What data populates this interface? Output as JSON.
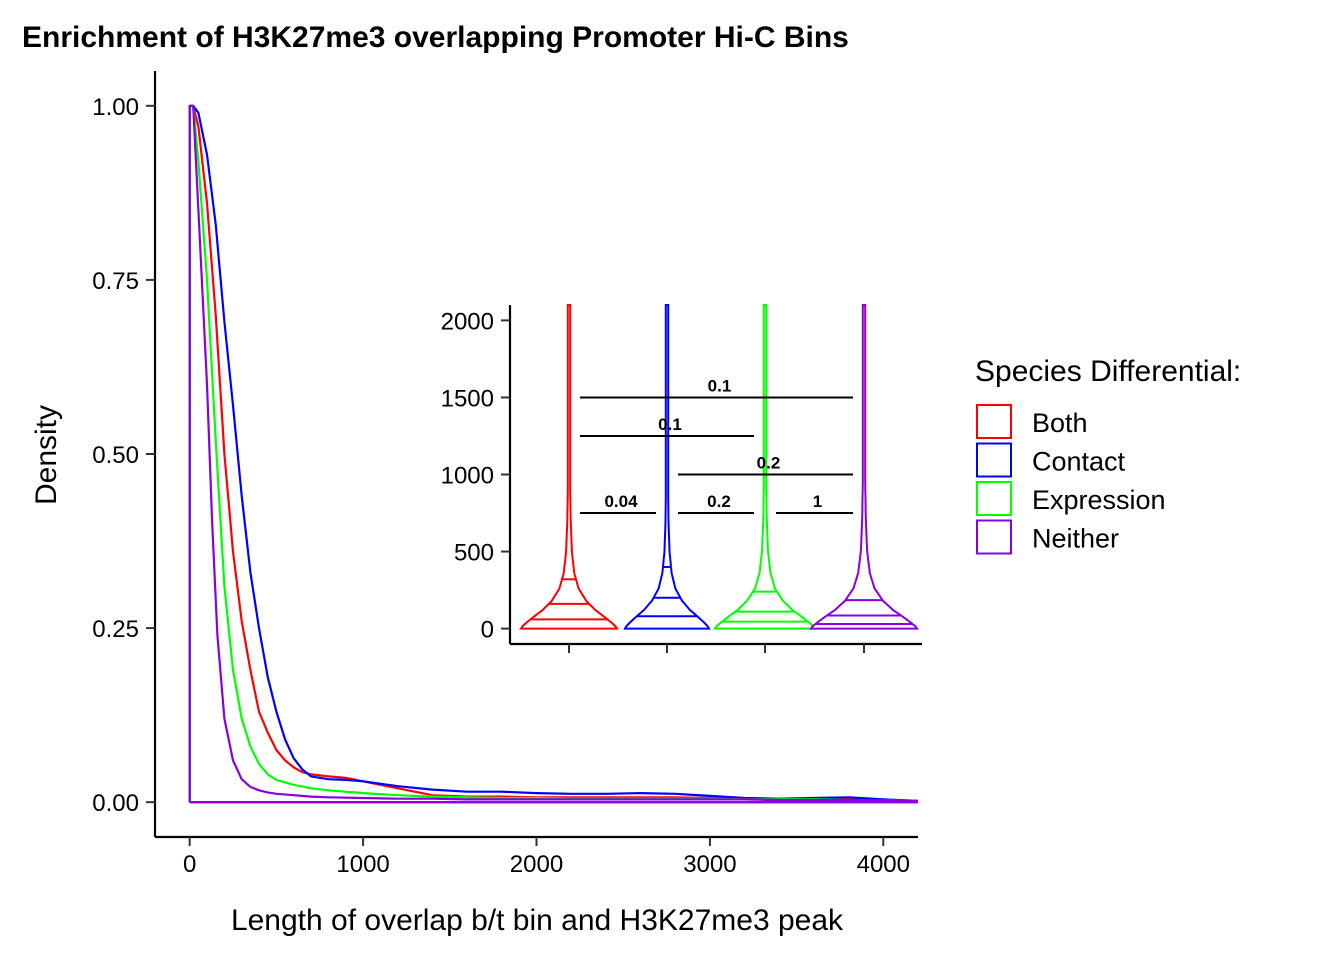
{
  "chart_data": [
    {
      "type": "line",
      "subtype": "density",
      "title": "Enrichment of H3K27me3 overlapping Promoter Hi-C Bins",
      "xlabel": "Length of overlap b/t bin and H3K27me3 peak",
      "ylabel": "Density",
      "xlim": [
        -200,
        4200
      ],
      "ylim": [
        -0.05,
        1.05
      ],
      "x_ticks": [
        0,
        1000,
        2000,
        3000,
        4000
      ],
      "x_tick_labels": [
        "0",
        "1000",
        "2000",
        "3000",
        "4000"
      ],
      "y_ticks": [
        0,
        0.25,
        0.5,
        0.75,
        1.0
      ],
      "y_tick_labels": [
        "0.00",
        "0.25",
        "0.50",
        "0.75",
        "1.00"
      ],
      "grid": false,
      "legend_position": "right",
      "legend_title": "Species Differential:",
      "series": [
        {
          "name": "Both",
          "color": "#FF0000",
          "x": [
            0,
            0,
            20,
            50,
            100,
            150,
            200,
            250,
            300,
            350,
            400,
            450,
            500,
            550,
            600,
            650,
            700,
            800,
            900,
            1000,
            1200,
            1400,
            1600,
            1800,
            2000,
            2200,
            2400,
            2600,
            2800,
            3000,
            3200,
            3400,
            3600,
            3800,
            4000,
            4200
          ],
          "y": [
            0.0,
            1.0,
            1.0,
            0.97,
            0.86,
            0.7,
            0.5,
            0.36,
            0.26,
            0.19,
            0.13,
            0.1,
            0.075,
            0.06,
            0.05,
            0.043,
            0.04,
            0.037,
            0.035,
            0.03,
            0.02,
            0.01,
            0.008,
            0.008,
            0.007,
            0.007,
            0.007,
            0.007,
            0.007,
            0.006,
            0.005,
            0.004,
            0.004,
            0.004,
            0.003,
            0.002
          ]
        },
        {
          "name": "Contact",
          "color": "#0000FF",
          "x": [
            0,
            0,
            20,
            50,
            100,
            150,
            200,
            250,
            300,
            350,
            400,
            450,
            500,
            550,
            600,
            650,
            700,
            800,
            900,
            1000,
            1200,
            1400,
            1600,
            1800,
            2000,
            2200,
            2400,
            2600,
            2800,
            3000,
            3200,
            3400,
            3600,
            3800,
            4000,
            4200
          ],
          "y": [
            0.0,
            1.0,
            1.0,
            0.99,
            0.93,
            0.83,
            0.69,
            0.57,
            0.44,
            0.33,
            0.25,
            0.18,
            0.13,
            0.09,
            0.063,
            0.047,
            0.037,
            0.033,
            0.032,
            0.03,
            0.023,
            0.018,
            0.015,
            0.015,
            0.013,
            0.012,
            0.012,
            0.013,
            0.012,
            0.009,
            0.006,
            0.005,
            0.006,
            0.007,
            0.004,
            0.002
          ]
        },
        {
          "name": "Expression",
          "color": "#00FF00",
          "x": [
            0,
            0,
            20,
            50,
            100,
            150,
            200,
            250,
            300,
            350,
            400,
            450,
            500,
            600,
            700,
            800,
            1000,
            1200,
            1400,
            1600,
            1800,
            2000,
            2200,
            2400,
            2600,
            2800,
            3000,
            3200,
            3400,
            3600,
            3800,
            4000,
            4200
          ],
          "y": [
            0.0,
            1.0,
            1.0,
            0.92,
            0.75,
            0.52,
            0.31,
            0.19,
            0.12,
            0.08,
            0.055,
            0.04,
            0.032,
            0.025,
            0.02,
            0.017,
            0.013,
            0.01,
            0.008,
            0.007,
            0.006,
            0.006,
            0.005,
            0.005,
            0.005,
            0.005,
            0.005,
            0.004,
            0.004,
            0.004,
            0.003,
            0.003,
            0.002
          ]
        },
        {
          "name": "Neither",
          "color": "#8800DD",
          "x": [
            0,
            0,
            20,
            50,
            100,
            130,
            160,
            200,
            250,
            300,
            350,
            400,
            450,
            500,
            600,
            700,
            800,
            1000,
            1200,
            1400,
            1600,
            1800,
            2000,
            2200,
            2400,
            2600,
            2800,
            3000,
            3200,
            3400,
            3600,
            3800,
            4000,
            4200
          ],
          "y": [
            0.0,
            1.0,
            1.0,
            0.85,
            0.6,
            0.4,
            0.24,
            0.12,
            0.06,
            0.033,
            0.022,
            0.017,
            0.014,
            0.012,
            0.01,
            0.008,
            0.007,
            0.006,
            0.005,
            0.005,
            0.004,
            0.004,
            0.004,
            0.004,
            0.004,
            0.004,
            0.004,
            0.004,
            0.004,
            0.003,
            0.003,
            0.003,
            0.003,
            0.002
          ]
        }
      ]
    },
    {
      "type": "violin",
      "title": "",
      "xlabel": "",
      "ylabel": "",
      "categories": [
        "Both",
        "Contact",
        "Expression",
        "Neither"
      ],
      "ylim": [
        -100,
        2100
      ],
      "y_ticks": [
        0,
        500,
        1000,
        1500,
        2000
      ],
      "y_tick_labels": [
        "0",
        "500",
        "1000",
        "1500",
        "2000"
      ],
      "quantiles_drawn": [
        0.25,
        0.5,
        0.75
      ],
      "series": [
        {
          "name": "Both",
          "color": "#FF0000",
          "quantiles": [
            60,
            160,
            320
          ],
          "max": 2100
        },
        {
          "name": "Contact",
          "color": "#0000FF",
          "quantiles": [
            80,
            200,
            400
          ],
          "max": 2100
        },
        {
          "name": "Expression",
          "color": "#00FF00",
          "quantiles": [
            45,
            110,
            240
          ],
          "max": 2100
        },
        {
          "name": "Neither",
          "color": "#8800DD",
          "quantiles": [
            30,
            85,
            185
          ],
          "max": 2100
        }
      ],
      "comparisons": [
        {
          "groups": [
            "Both",
            "Contact"
          ],
          "label": "0.04",
          "y": 750
        },
        {
          "groups": [
            "Contact",
            "Expression"
          ],
          "label": "0.2",
          "y": 750
        },
        {
          "groups": [
            "Expression",
            "Neither"
          ],
          "label": "1",
          "y": 750
        },
        {
          "groups": [
            "Contact",
            "Neither"
          ],
          "label": "0.2",
          "y": 1000
        },
        {
          "groups": [
            "Both",
            "Expression"
          ],
          "label": "0.1",
          "y": 1250
        },
        {
          "groups": [
            "Both",
            "Neither"
          ],
          "label": "0.1",
          "y": 1500
        }
      ]
    }
  ]
}
